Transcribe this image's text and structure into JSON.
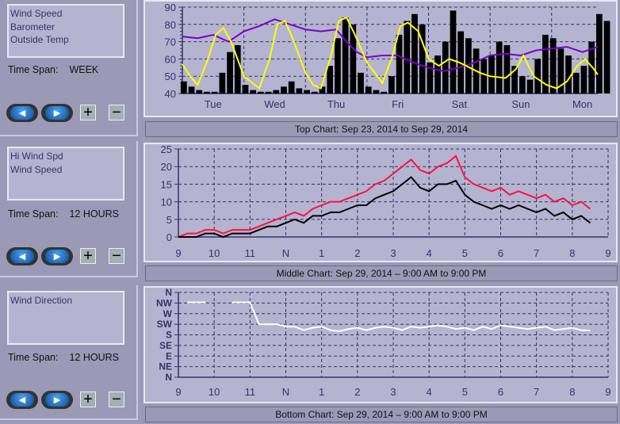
{
  "panels": [
    {
      "list": [
        "Wind Speed",
        "Barometer",
        "Outside Temp"
      ],
      "time_span_label": "Time Span:",
      "time_span": "WEEK"
    },
    {
      "list": [
        "Hi Wind Spd",
        "Wind Speed"
      ],
      "time_span_label": "Time Span:",
      "time_span": "12 HOURS"
    },
    {
      "list": [
        "Wind Direction"
      ],
      "time_span_label": "Time Span:",
      "time_span": "12 HOURS"
    }
  ],
  "buttons": {
    "prev_icon": "left-arrow",
    "next_icon": "right-arrow",
    "plus": "+",
    "minus": "−"
  },
  "captions": {
    "top": "Top Chart:  Sep 23, 2014  to  Sep 29, 2014",
    "middle": "Middle Chart:  Sep 29, 2014 – 9:00 AM  to  9:00 PM",
    "bottom": "Bottom Chart:  Sep 29, 2014 – 9:00 AM  to  9:00 PM"
  },
  "chart_data": [
    {
      "type": "line",
      "id": "top",
      "x_unit": "hours from Tue 00:00",
      "xlim": [
        0,
        162
      ],
      "xticks": [
        {
          "label": "Tue",
          "at": 12
        },
        {
          "label": "Wed",
          "at": 36
        },
        {
          "label": "Thu",
          "at": 60
        },
        {
          "label": "Fri",
          "at": 84
        },
        {
          "label": "Sat",
          "at": 108
        },
        {
          "label": "Sun",
          "at": 132
        },
        {
          "label": "Mon",
          "at": 156
        }
      ],
      "ylim": [
        40,
        90
      ],
      "yticks": [
        40,
        50,
        60,
        70,
        80,
        90
      ],
      "grid": true,
      "series": [
        {
          "name": "Wind Speed",
          "color": "#000000",
          "style": "spikes",
          "x_step": 3,
          "values": [
            47,
            44,
            42,
            41,
            41,
            52,
            64,
            68,
            45,
            42,
            41,
            41,
            42,
            44,
            47,
            43,
            42,
            41,
            44,
            56,
            72,
            84,
            80,
            52,
            44,
            42,
            41,
            50,
            74,
            82,
            86,
            80,
            58,
            62,
            70,
            88,
            76,
            72,
            66,
            60,
            62,
            70,
            68,
            56,
            50,
            48,
            60,
            74,
            72,
            66,
            62,
            52,
            56,
            70,
            86,
            82
          ]
        },
        {
          "name": "Barometer",
          "color": "#7a00c8",
          "x": [
            0,
            6,
            12,
            18,
            24,
            30,
            36,
            42,
            48,
            54,
            60,
            64,
            68,
            72,
            78,
            84,
            90,
            96,
            102,
            108,
            114,
            120,
            126,
            132,
            138,
            144,
            150,
            156,
            162
          ],
          "values": [
            73,
            72,
            74,
            70,
            76,
            79,
            83,
            80,
            77,
            76,
            77,
            70,
            64,
            61,
            62,
            62,
            58,
            55,
            53,
            55,
            58,
            62,
            63,
            62,
            65,
            66,
            67,
            64,
            67
          ]
        },
        {
          "name": "Outside Temp",
          "color": "#ffff00",
          "x": [
            0,
            3,
            6,
            10,
            13,
            16,
            19,
            24,
            30,
            34,
            37,
            40,
            43,
            48,
            51,
            54,
            58,
            61,
            64,
            67,
            72,
            78,
            82,
            85,
            88,
            92,
            96,
            100,
            104,
            108,
            112,
            116,
            120,
            126,
            130,
            133,
            137,
            142,
            146,
            150,
            154,
            157,
            160,
            162
          ],
          "values": [
            57,
            50,
            45,
            60,
            74,
            78,
            70,
            50,
            43,
            60,
            80,
            82,
            72,
            52,
            45,
            43,
            62,
            82,
            84,
            75,
            58,
            46,
            62,
            79,
            81,
            76,
            60,
            56,
            60,
            58,
            55,
            52,
            50,
            49,
            54,
            62,
            50,
            45,
            43,
            47,
            56,
            60,
            55,
            51
          ]
        }
      ]
    },
    {
      "type": "line",
      "id": "middle",
      "x_unit": "hours from 9 AM",
      "xlim": [
        0,
        12
      ],
      "xticks": [
        {
          "label": "9",
          "at": 0
        },
        {
          "label": "10",
          "at": 1
        },
        {
          "label": "11",
          "at": 2
        },
        {
          "label": "N",
          "at": 3
        },
        {
          "label": "1",
          "at": 4
        },
        {
          "label": "2",
          "at": 5
        },
        {
          "label": "3",
          "at": 6
        },
        {
          "label": "4",
          "at": 7
        },
        {
          "label": "5",
          "at": 8
        },
        {
          "label": "6",
          "at": 9
        },
        {
          "label": "7",
          "at": 10
        },
        {
          "label": "8",
          "at": 11
        },
        {
          "label": "9",
          "at": 12
        }
      ],
      "ylim": [
        0,
        25
      ],
      "yticks": [
        0,
        5,
        10,
        15,
        20,
        25
      ],
      "grid": true,
      "x_step": 0.25,
      "series": [
        {
          "name": "Hi Wind Spd",
          "color": "#ff1040",
          "values": [
            0,
            1,
            1,
            2,
            2,
            1,
            2,
            2,
            2,
            3,
            4,
            5,
            6,
            7,
            6,
            8,
            9,
            10,
            10,
            11,
            12,
            13,
            15,
            16,
            18,
            20,
            22,
            19,
            18,
            20,
            21,
            23,
            17,
            15,
            14,
            13,
            14,
            12,
            13,
            12,
            11,
            12,
            10,
            11,
            9,
            10,
            8
          ]
        },
        {
          "name": "Wind Speed",
          "color": "#000000",
          "values": [
            0,
            0,
            0,
            1,
            1,
            0,
            1,
            1,
            1,
            2,
            3,
            3,
            4,
            5,
            4,
            6,
            6,
            7,
            7,
            8,
            9,
            9,
            11,
            12,
            13,
            15,
            17,
            14,
            13,
            15,
            15,
            16,
            12,
            10,
            9,
            8,
            9,
            8,
            9,
            8,
            7,
            8,
            6,
            7,
            5,
            6,
            4
          ]
        }
      ]
    },
    {
      "type": "line",
      "id": "bottom",
      "x_unit": "hours from 9 AM",
      "xlim": [
        0,
        12
      ],
      "xticks": [
        {
          "label": "9",
          "at": 0
        },
        {
          "label": "10",
          "at": 1
        },
        {
          "label": "11",
          "at": 2
        },
        {
          "label": "N",
          "at": 3
        },
        {
          "label": "1",
          "at": 4
        },
        {
          "label": "2",
          "at": 5
        },
        {
          "label": "3",
          "at": 6
        },
        {
          "label": "4",
          "at": 7
        },
        {
          "label": "5",
          "at": 8
        },
        {
          "label": "6",
          "at": 9
        },
        {
          "label": "7",
          "at": 10
        },
        {
          "label": "8",
          "at": 11
        },
        {
          "label": "9",
          "at": 12
        }
      ],
      "ylim": [
        0,
        360
      ],
      "yticks": [
        {
          "label": "N",
          "at": 0
        },
        {
          "label": "NE",
          "at": 45
        },
        {
          "label": "E",
          "at": 90
        },
        {
          "label": "SE",
          "at": 135
        },
        {
          "label": "S",
          "at": 180
        },
        {
          "label": "SW",
          "at": 225
        },
        {
          "label": "W",
          "at": 270
        },
        {
          "label": "NW",
          "at": 315
        },
        {
          "label": "N",
          "at": 360
        }
      ],
      "grid": true,
      "x_step": 0.25,
      "series": [
        {
          "name": "Wind Direction",
          "color": "#ffffff",
          "values": [
            null,
            318,
            318,
            318,
            null,
            null,
            318,
            318,
            318,
            225,
            225,
            225,
            215,
            215,
            200,
            210,
            215,
            200,
            195,
            205,
            210,
            200,
            210,
            215,
            210,
            200,
            215,
            210,
            215,
            220,
            215,
            205,
            210,
            200,
            215,
            205,
            220,
            215,
            210,
            205,
            210,
            215,
            200,
            205,
            210,
            200,
            198
          ]
        }
      ]
    }
  ]
}
